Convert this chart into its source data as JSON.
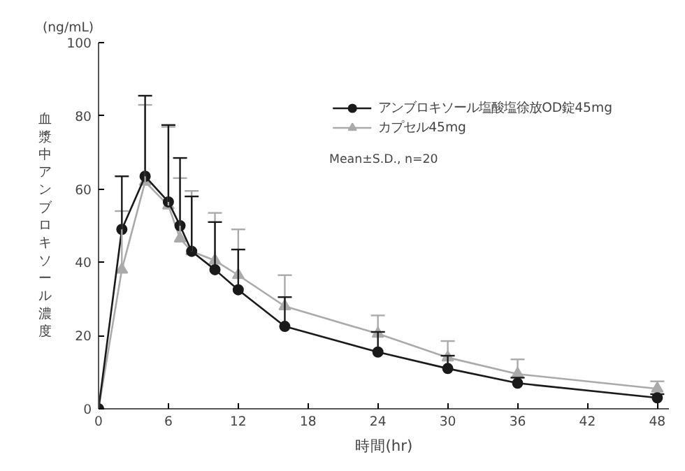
{
  "chart_data": {
    "type": "line",
    "xlabel": "時間(hr)",
    "ylabel": "血漿中アンブロキソール濃度",
    "annotations": [
      "(ng/mL)",
      "Mean±S.D., n=20"
    ],
    "x": [
      0,
      2,
      4,
      6,
      7,
      8,
      10,
      12,
      16,
      24,
      30,
      36,
      48
    ],
    "series": [
      {
        "name": "アンブロキソール塩酸塩徐放OD錠45mg",
        "color": "#1a1a1a",
        "marker": "circle",
        "values": [
          0,
          49,
          63.5,
          56.5,
          50,
          43,
          38,
          32.5,
          22.5,
          15.5,
          11,
          7,
          3
        ],
        "errors": [
          null,
          [
            49,
            63.5
          ],
          [
            63.5,
            85.5
          ],
          [
            56.5,
            77.5
          ],
          [
            50,
            68.5
          ],
          [
            43,
            58
          ],
          [
            38,
            51
          ],
          [
            32.5,
            43.5
          ],
          [
            22.5,
            30.5
          ],
          [
            15.5,
            21
          ],
          [
            11,
            14.5
          ],
          [
            7,
            8.5
          ],
          [
            3,
            4
          ]
        ]
      },
      {
        "name": "カプセル45mg",
        "color": "#aaaaaa",
        "marker": "triangle",
        "values": [
          0,
          38,
          62,
          55.5,
          46.5,
          43,
          40.5,
          36.5,
          28,
          20.5,
          14,
          9.5,
          5.5
        ],
        "errors": [
          null,
          [
            38,
            54
          ],
          [
            62,
            83
          ],
          [
            55.5,
            77
          ],
          [
            46.5,
            63
          ],
          [
            43,
            59.5
          ],
          [
            40.5,
            53.5
          ],
          [
            36.5,
            49
          ],
          [
            28,
            36.5
          ],
          [
            20.5,
            25.5
          ],
          [
            14,
            18.5
          ],
          [
            9.5,
            13.5
          ],
          [
            5.5,
            7.5
          ]
        ]
      }
    ],
    "xlim": [
      0,
      49
    ],
    "ylim": [
      0,
      100
    ],
    "xticks": [
      0,
      6,
      12,
      18,
      24,
      30,
      36,
      42,
      48
    ],
    "yticks": [
      0,
      20,
      40,
      60,
      80,
      100
    ],
    "grid": false,
    "legend": "top right"
  }
}
